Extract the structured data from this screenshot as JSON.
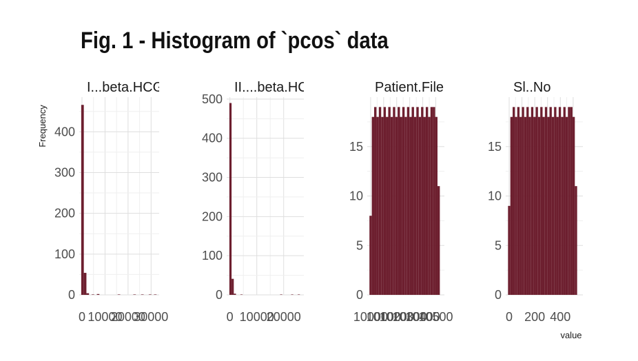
{
  "title": "Fig. 1 - Histogram of `pcos` data",
  "chart_data": {
    "type": "bar",
    "xlabel": "value",
    "ylabel": "Frequency",
    "bar_color": "#6d1f2f",
    "facets": [
      {
        "name": "I...beta.HCG",
        "xlim": [
          -1200,
          33500
        ],
        "ylim": [
          0,
          485
        ],
        "x_ticks": [
          0,
          10000,
          20000,
          30000
        ],
        "x_tick_labels": [
          "0",
          "10000",
          "20000",
          "30000"
        ],
        "y_ticks": [
          0,
          100,
          200,
          300,
          400
        ],
        "bins": [
          {
            "x0": -340,
            "x1": 790,
            "count": 466
          },
          {
            "x0": 790,
            "x1": 1920,
            "count": 54
          },
          {
            "x0": 1920,
            "x1": 3050,
            "count": 4
          },
          {
            "x0": 4180,
            "x1": 5310,
            "count": 1
          },
          {
            "x0": 6440,
            "x1": 7570,
            "count": 2
          },
          {
            "x0": 15480,
            "x1": 16610,
            "count": 1
          },
          {
            "x0": 22260,
            "x1": 23390,
            "count": 1
          },
          {
            "x0": 25650,
            "x1": 26780,
            "count": 1
          },
          {
            "x0": 28980,
            "x1": 30110,
            "count": 1
          },
          {
            "x0": 31240,
            "x1": 32370,
            "count": 1
          }
        ]
      },
      {
        "name": "II....beta.HCG",
        "xlim": [
          -1200,
          27500
        ],
        "ylim": [
          0,
          505
        ],
        "x_ticks": [
          0,
          10000,
          20000
        ],
        "x_tick_labels": [
          "0",
          "10000",
          "20000"
        ],
        "y_ticks": [
          0,
          100,
          200,
          300,
          400,
          500
        ],
        "bins": [
          {
            "x0": -200,
            "x1": 620,
            "count": 490
          },
          {
            "x0": 620,
            "x1": 1440,
            "count": 41
          },
          {
            "x0": 1440,
            "x1": 2260,
            "count": 3
          },
          {
            "x0": 3900,
            "x1": 4720,
            "count": 1
          },
          {
            "x0": 18660,
            "x1": 19480,
            "count": 1
          },
          {
            "x0": 22760,
            "x1": 23580,
            "count": 1
          },
          {
            "x0": 25220,
            "x1": 26040,
            "count": 1
          }
        ]
      },
      {
        "name": "Patient.File.No.",
        "xlim": [
          9974,
          10566
        ],
        "ylim": [
          0,
          20
        ],
        "x_ticks": [
          10000,
          10100,
          10200,
          10300,
          10400,
          10500
        ],
        "x_tick_labels": [
          "10000",
          "10100",
          "10200",
          "10300",
          "10400",
          "10500"
        ],
        "y_ticks": [
          0,
          5,
          10,
          15
        ],
        "bins": [
          {
            "x0": 9991,
            "x1": 10009,
            "count": 8
          },
          {
            "x0": 10009,
            "x1": 10027,
            "count": 18
          },
          {
            "x0": 10027,
            "x1": 10045,
            "count": 19
          },
          {
            "x0": 10045,
            "x1": 10063,
            "count": 18
          },
          {
            "x0": 10063,
            "x1": 10081,
            "count": 19
          },
          {
            "x0": 10081,
            "x1": 10099,
            "count": 18
          },
          {
            "x0": 10099,
            "x1": 10117,
            "count": 19
          },
          {
            "x0": 10117,
            "x1": 10135,
            "count": 18
          },
          {
            "x0": 10135,
            "x1": 10153,
            "count": 19
          },
          {
            "x0": 10153,
            "x1": 10171,
            "count": 18
          },
          {
            "x0": 10171,
            "x1": 10189,
            "count": 19
          },
          {
            "x0": 10189,
            "x1": 10207,
            "count": 18
          },
          {
            "x0": 10207,
            "x1": 10225,
            "count": 19
          },
          {
            "x0": 10225,
            "x1": 10243,
            "count": 18
          },
          {
            "x0": 10243,
            "x1": 10261,
            "count": 19
          },
          {
            "x0": 10261,
            "x1": 10279,
            "count": 18
          },
          {
            "x0": 10279,
            "x1": 10297,
            "count": 19
          },
          {
            "x0": 10297,
            "x1": 10315,
            "count": 18
          },
          {
            "x0": 10315,
            "x1": 10333,
            "count": 19
          },
          {
            "x0": 10333,
            "x1": 10351,
            "count": 18
          },
          {
            "x0": 10351,
            "x1": 10369,
            "count": 19
          },
          {
            "x0": 10369,
            "x1": 10387,
            "count": 18
          },
          {
            "x0": 10387,
            "x1": 10405,
            "count": 19
          },
          {
            "x0": 10405,
            "x1": 10423,
            "count": 18
          },
          {
            "x0": 10423,
            "x1": 10441,
            "count": 19
          },
          {
            "x0": 10441,
            "x1": 10459,
            "count": 18
          },
          {
            "x0": 10459,
            "x1": 10477,
            "count": 19
          },
          {
            "x0": 10477,
            "x1": 10495,
            "count": 19
          },
          {
            "x0": 10495,
            "x1": 10513,
            "count": 18
          },
          {
            "x0": 10513,
            "x1": 10531,
            "count": 11
          }
        ]
      },
      {
        "name": "Sl..No",
        "xlim": [
          -27,
          576
        ],
        "ylim": [
          0,
          20
        ],
        "x_ticks": [
          0,
          100,
          200,
          300,
          400,
          500
        ],
        "x_tick_labels": [
          "0",
          "",
          "200",
          "",
          "400",
          ""
        ],
        "y_ticks": [
          0,
          5,
          10,
          15
        ],
        "bins": [
          {
            "x0": -9,
            "x1": 9,
            "count": 9
          },
          {
            "x0": 9,
            "x1": 27,
            "count": 18
          },
          {
            "x0": 27,
            "x1": 45,
            "count": 19
          },
          {
            "x0": 45,
            "x1": 63,
            "count": 18
          },
          {
            "x0": 63,
            "x1": 81,
            "count": 19
          },
          {
            "x0": 81,
            "x1": 99,
            "count": 18
          },
          {
            "x0": 99,
            "x1": 117,
            "count": 19
          },
          {
            "x0": 117,
            "x1": 135,
            "count": 18
          },
          {
            "x0": 135,
            "x1": 153,
            "count": 19
          },
          {
            "x0": 153,
            "x1": 171,
            "count": 18
          },
          {
            "x0": 171,
            "x1": 189,
            "count": 19
          },
          {
            "x0": 189,
            "x1": 207,
            "count": 18
          },
          {
            "x0": 207,
            "x1": 225,
            "count": 19
          },
          {
            "x0": 225,
            "x1": 243,
            "count": 18
          },
          {
            "x0": 243,
            "x1": 261,
            "count": 19
          },
          {
            "x0": 261,
            "x1": 279,
            "count": 18
          },
          {
            "x0": 279,
            "x1": 297,
            "count": 19
          },
          {
            "x0": 297,
            "x1": 315,
            "count": 18
          },
          {
            "x0": 315,
            "x1": 333,
            "count": 19
          },
          {
            "x0": 333,
            "x1": 351,
            "count": 18
          },
          {
            "x0": 351,
            "x1": 369,
            "count": 19
          },
          {
            "x0": 369,
            "x1": 387,
            "count": 18
          },
          {
            "x0": 387,
            "x1": 405,
            "count": 19
          },
          {
            "x0": 405,
            "x1": 423,
            "count": 18
          },
          {
            "x0": 423,
            "x1": 441,
            "count": 19
          },
          {
            "x0": 441,
            "x1": 459,
            "count": 18
          },
          {
            "x0": 459,
            "x1": 477,
            "count": 19
          },
          {
            "x0": 477,
            "x1": 495,
            "count": 19
          },
          {
            "x0": 495,
            "x1": 513,
            "count": 18
          },
          {
            "x0": 513,
            "x1": 531,
            "count": 11
          }
        ]
      }
    ]
  }
}
